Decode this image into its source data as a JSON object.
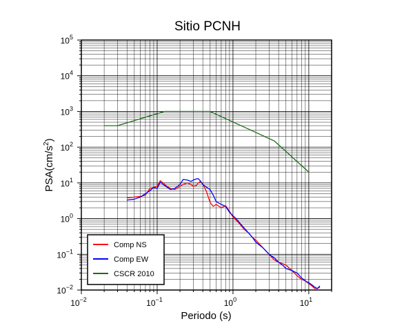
{
  "chart_data": {
    "type": "line",
    "title": "Sitio PCNH",
    "xlabel": "Periodo (s)",
    "ylabel_base": "PSA(cm/s",
    "ylabel_exp": "2",
    "ylabel_close": ")",
    "x_scale": "log",
    "y_scale": "log",
    "xlim": [
      0.01,
      20
    ],
    "ylim": [
      0.01,
      100000
    ],
    "grid": true,
    "legend_position": "bottom-left",
    "x_ticks": [
      {
        "base": "10",
        "exp": "−2",
        "value": 0.01
      },
      {
        "base": "10",
        "exp": "−1",
        "value": 0.1
      },
      {
        "base": "10",
        "exp": "0",
        "value": 1
      },
      {
        "base": "10",
        "exp": "1",
        "value": 10
      }
    ],
    "y_ticks": [
      {
        "base": "10",
        "exp": "−2",
        "value": 0.01
      },
      {
        "base": "10",
        "exp": "−1",
        "value": 0.1
      },
      {
        "base": "10",
        "exp": "0",
        "value": 1
      },
      {
        "base": "10",
        "exp": "1",
        "value": 10
      },
      {
        "base": "10",
        "exp": "2",
        "value": 100
      },
      {
        "base": "10",
        "exp": "3",
        "value": 1000
      },
      {
        "base": "10",
        "exp": "4",
        "value": 10000
      },
      {
        "base": "10",
        "exp": "5",
        "value": 100000
      }
    ],
    "series": [
      {
        "name": "Comp NS",
        "color": "#ff0000",
        "x": [
          0.04,
          0.05,
          0.06,
          0.07,
          0.08,
          0.09,
          0.1,
          0.11,
          0.12,
          0.13,
          0.15,
          0.17,
          0.2,
          0.22,
          0.25,
          0.28,
          0.3,
          0.33,
          0.35,
          0.37,
          0.4,
          0.45,
          0.5,
          0.55,
          0.6,
          0.7,
          0.8,
          0.9,
          1.0,
          1.1,
          1.2,
          1.4,
          1.6,
          1.8,
          2.0,
          2.5,
          3.0,
          3.5,
          4.0,
          4.5,
          5.0,
          6.0,
          7.0,
          8.0,
          9.0,
          10.0,
          11.0,
          12.0,
          13.0,
          14.0
        ],
        "y": [
          3.8,
          4.0,
          4.2,
          4.5,
          7.0,
          7.5,
          8.0,
          11.5,
          10.0,
          8.5,
          7.0,
          6.5,
          8.0,
          9.0,
          10.0,
          9.0,
          8.0,
          8.5,
          10.0,
          11.0,
          9.5,
          5.5,
          2.8,
          2.2,
          2.5,
          2.0,
          2.3,
          1.6,
          1.1,
          0.9,
          0.75,
          0.5,
          0.4,
          0.3,
          0.25,
          0.15,
          0.1,
          0.07,
          0.06,
          0.055,
          0.05,
          0.035,
          0.025,
          0.02,
          0.018,
          0.015,
          0.013,
          0.011,
          0.011,
          0.012
        ]
      },
      {
        "name": "Comp EW",
        "color": "#0000ff",
        "x": [
          0.04,
          0.05,
          0.06,
          0.07,
          0.08,
          0.09,
          0.1,
          0.11,
          0.12,
          0.13,
          0.15,
          0.17,
          0.2,
          0.22,
          0.25,
          0.28,
          0.3,
          0.33,
          0.35,
          0.37,
          0.4,
          0.45,
          0.5,
          0.55,
          0.6,
          0.7,
          0.8,
          0.9,
          1.0,
          1.1,
          1.2,
          1.4,
          1.6,
          1.8,
          2.0,
          2.5,
          3.0,
          3.5,
          4.0,
          4.5,
          5.0,
          6.0,
          7.0,
          8.0,
          9.0,
          10.0,
          11.0,
          12.0,
          13.0,
          14.0
        ],
        "y": [
          3.3,
          3.5,
          4.0,
          5.0,
          6.0,
          7.5,
          7.0,
          10.5,
          9.0,
          8.0,
          6.5,
          7.0,
          9.0,
          12.5,
          12.0,
          11.0,
          12.0,
          13.0,
          13.0,
          11.5,
          9.0,
          7.5,
          6.5,
          4.5,
          3.0,
          2.5,
          2.2,
          1.5,
          1.2,
          1.0,
          0.8,
          0.55,
          0.4,
          0.3,
          0.22,
          0.15,
          0.1,
          0.08,
          0.06,
          0.05,
          0.04,
          0.035,
          0.03,
          0.022,
          0.018,
          0.016,
          0.014,
          0.012,
          0.011,
          0.013
        ]
      },
      {
        "name": "CSCR 2010",
        "color": "#1a6b1a",
        "x": [
          0.02,
          0.03,
          0.125,
          0.5,
          3.5,
          10.0
        ],
        "y": [
          400,
          400,
          1000,
          1000,
          150,
          20
        ]
      }
    ]
  }
}
